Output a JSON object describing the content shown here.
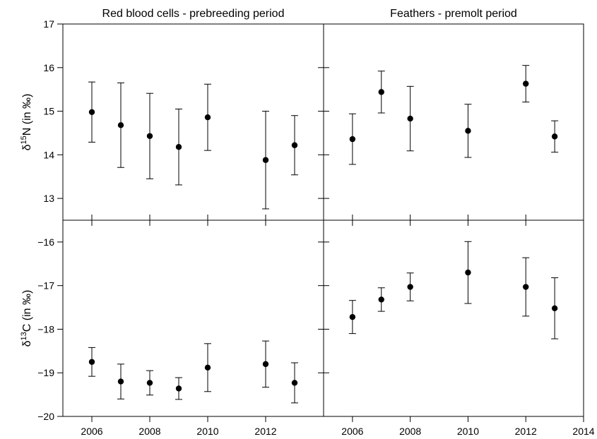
{
  "chart_data": {
    "type": "scatter",
    "panels": [
      {
        "id": "rbc-n",
        "title": "Red blood cells - prebreeding period",
        "ylabel": "δ15N (in ‰)",
        "xlim": [
          2005,
          2014
        ],
        "ylim": [
          12.5,
          17
        ],
        "x": [
          2006,
          2007,
          2008,
          2009,
          2010,
          2012,
          2013
        ],
        "y": [
          14.98,
          14.68,
          14.43,
          14.18,
          14.86,
          13.88,
          14.22
        ],
        "err": [
          0.69,
          0.97,
          0.98,
          0.87,
          0.76,
          1.12,
          0.68
        ]
      },
      {
        "id": "fea-n",
        "title": "Feathers - premolt period",
        "ylabel": "",
        "xlim": [
          2005,
          2014
        ],
        "ylim": [
          12.5,
          17
        ],
        "x": [
          2006,
          2007,
          2008,
          2010,
          2012,
          2013
        ],
        "y": [
          14.36,
          15.44,
          14.83,
          14.55,
          15.63,
          14.42
        ],
        "err": [
          0.58,
          0.48,
          0.74,
          0.61,
          0.42,
          0.36
        ]
      },
      {
        "id": "rbc-c",
        "title": "",
        "ylabel": "δ13C (in ‰)",
        "xlim": [
          2005,
          2014
        ],
        "ylim": [
          -20,
          -15.5
        ],
        "x": [
          2006,
          2007,
          2008,
          2009,
          2010,
          2012,
          2013
        ],
        "y": [
          -18.75,
          -19.2,
          -19.23,
          -19.36,
          -18.88,
          -18.8,
          -19.23
        ],
        "err": [
          0.33,
          0.4,
          0.28,
          0.25,
          0.55,
          0.53,
          0.46
        ]
      },
      {
        "id": "fea-c",
        "title": "",
        "ylabel": "",
        "xlim": [
          2005,
          2014
        ],
        "ylim": [
          -20,
          -15.5
        ],
        "x": [
          2006,
          2007,
          2008,
          2010,
          2012,
          2013
        ],
        "y": [
          -17.72,
          -17.32,
          -17.03,
          -16.7,
          -17.03,
          -17.52
        ],
        "err": [
          0.38,
          0.27,
          0.32,
          0.71,
          0.67,
          0.7
        ]
      }
    ],
    "y_ticks_top": [
      13,
      14,
      15,
      16,
      17
    ],
    "y_ticks_bottom": [
      -20,
      -19,
      -18,
      -17,
      -16
    ],
    "x_ticks_left": [
      2006,
      2008,
      2010,
      2012
    ],
    "x_ticks_right": [
      2006,
      2008,
      2010,
      2012,
      2014
    ],
    "grid": false,
    "legend": "none"
  }
}
